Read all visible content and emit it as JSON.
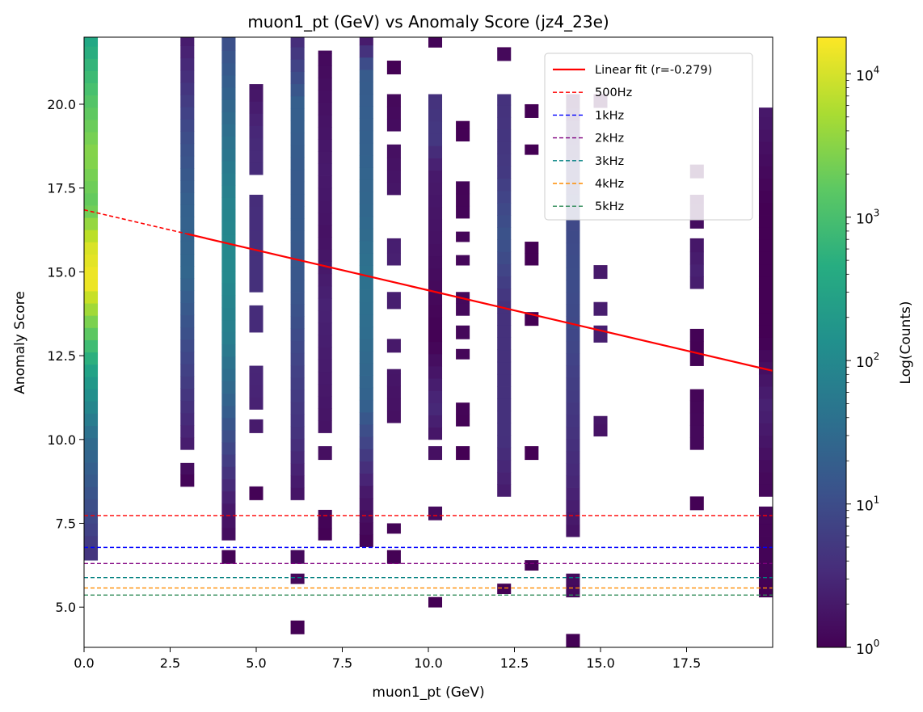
{
  "chart_data": {
    "type": "heatmap",
    "title": "muon1_pt (GeV) vs Anomaly Score (jz4_23e)",
    "xlabel": "muon1_pt (GeV)",
    "ylabel": "Anomaly Score",
    "xlim": [
      0,
      20
    ],
    "ylim": [
      3.8,
      22.0
    ],
    "x_ticks": [
      0.0,
      2.5,
      5.0,
      7.5,
      10.0,
      12.5,
      15.0,
      17.5
    ],
    "x_tick_labels": [
      "0.0",
      "2.5",
      "5.0",
      "7.5",
      "10.0",
      "12.5",
      "15.0",
      "17.5"
    ],
    "y_ticks": [
      5.0,
      7.5,
      10.0,
      12.5,
      15.0,
      17.5,
      20.0
    ],
    "y_tick_labels": [
      "5.0",
      "7.5",
      "10.0",
      "12.5",
      "15.0",
      "17.5",
      "20.0"
    ],
    "grid": false,
    "colormap": "viridis",
    "colorbar": {
      "label": "Log(Counts)",
      "scale": "log",
      "range": [
        1,
        18000
      ],
      "ticks": [
        1,
        10,
        100,
        1000,
        10000
      ],
      "tick_bases": [
        "10",
        "10",
        "10",
        "10",
        "10"
      ],
      "tick_exponents": [
        "0",
        "1",
        "2",
        "3",
        "4"
      ]
    },
    "heatmap_columns": [
      {
        "x": 0.2,
        "segments": [
          [
            6.4,
            22.0
          ]
        ],
        "log10_profile": [
          [
            6.4,
            0.6
          ],
          [
            8.0,
            1.0
          ],
          [
            10.0,
            1.5
          ],
          [
            12.0,
            2.4
          ],
          [
            13.5,
            3.4
          ],
          [
            14.7,
            4.2
          ],
          [
            15.8,
            4.0
          ],
          [
            17.0,
            3.2
          ],
          [
            18.5,
            3.5
          ],
          [
            20.5,
            3.0
          ],
          [
            22.0,
            2.5
          ]
        ]
      },
      {
        "x": 3.0,
        "segments": [
          [
            8.6,
            9.3
          ],
          [
            9.7,
            22.0
          ]
        ],
        "log10_profile": [
          [
            8.6,
            0.0
          ],
          [
            10.5,
            0.5
          ],
          [
            13.0,
            1.0
          ],
          [
            15.0,
            1.4
          ],
          [
            17.0,
            1.3
          ],
          [
            19.0,
            1.0
          ],
          [
            22.0,
            0.3
          ]
        ]
      },
      {
        "x": 4.2,
        "segments": [
          [
            6.3,
            6.7
          ],
          [
            7.0,
            22.0
          ]
        ],
        "log10_profile": [
          [
            6.3,
            0.0
          ],
          [
            8.0,
            0.3
          ],
          [
            9.5,
            0.8
          ],
          [
            11.0,
            1.3
          ],
          [
            13.0,
            1.8
          ],
          [
            15.0,
            2.0
          ],
          [
            17.0,
            1.9
          ],
          [
            19.0,
            1.6
          ],
          [
            22.0,
            1.0
          ]
        ]
      },
      {
        "x": 5.0,
        "segments": [
          [
            8.2,
            8.6
          ],
          [
            10.2,
            10.6
          ],
          [
            10.9,
            12.2
          ],
          [
            13.2,
            14.0
          ],
          [
            14.4,
            17.3
          ],
          [
            17.9,
            20.6
          ]
        ],
        "log10_profile": [
          [
            8.2,
            0.0
          ],
          [
            11.0,
            0.4
          ],
          [
            15.0,
            0.6
          ],
          [
            19.0,
            0.5
          ],
          [
            20.6,
            0.2
          ]
        ]
      },
      {
        "x": 6.2,
        "segments": [
          [
            4.2,
            4.6
          ],
          [
            5.7,
            6.0
          ],
          [
            6.3,
            6.7
          ],
          [
            8.2,
            22.0
          ]
        ],
        "log10_profile": [
          [
            4.2,
            0.0
          ],
          [
            8.2,
            0.2
          ],
          [
            10.0,
            0.6
          ],
          [
            12.0,
            0.8
          ],
          [
            14.0,
            1.1
          ],
          [
            16.0,
            1.2
          ],
          [
            18.0,
            1.2
          ],
          [
            20.0,
            1.3
          ],
          [
            22.0,
            0.5
          ]
        ]
      },
      {
        "x": 7.0,
        "segments": [
          [
            7.0,
            7.9
          ],
          [
            9.4,
            9.8
          ],
          [
            10.2,
            21.6
          ]
        ],
        "log10_profile": [
          [
            7.0,
            0.0
          ],
          [
            10.0,
            0.2
          ],
          [
            12.0,
            0.3
          ],
          [
            14.0,
            0.4
          ],
          [
            16.0,
            0.2
          ],
          [
            18.0,
            0.3
          ],
          [
            21.6,
            0.1
          ]
        ]
      },
      {
        "x": 8.2,
        "segments": [
          [
            6.8,
            22.0
          ]
        ],
        "log10_profile": [
          [
            6.8,
            0.0
          ],
          [
            8.5,
            0.3
          ],
          [
            10.0,
            0.9
          ],
          [
            11.0,
            1.3
          ],
          [
            13.0,
            1.5
          ],
          [
            15.0,
            1.6
          ],
          [
            17.0,
            1.4
          ],
          [
            19.0,
            1.3
          ],
          [
            21.0,
            1.2
          ],
          [
            22.0,
            0.2
          ]
        ]
      },
      {
        "x": 9.0,
        "segments": [
          [
            6.3,
            6.7
          ],
          [
            7.2,
            7.5
          ],
          [
            10.5,
            12.1
          ],
          [
            12.6,
            13.0
          ],
          [
            13.9,
            14.4
          ],
          [
            15.2,
            16.0
          ],
          [
            17.3,
            18.8
          ],
          [
            19.2,
            20.3
          ],
          [
            20.9,
            21.3
          ]
        ],
        "log10_profile": [
          [
            6.3,
            0.0
          ],
          [
            11.0,
            0.2
          ],
          [
            15.0,
            0.4
          ],
          [
            20.0,
            0.1
          ],
          [
            21.3,
            0.0
          ]
        ]
      },
      {
        "x": 10.2,
        "segments": [
          [
            5.0,
            5.3
          ],
          [
            7.6,
            8.0
          ],
          [
            9.4,
            9.8
          ],
          [
            10.0,
            20.3
          ],
          [
            21.7,
            22.0
          ]
        ],
        "log10_profile": [
          [
            5.0,
            0.0
          ],
          [
            10.0,
            0.2
          ],
          [
            11.0,
            0.5
          ],
          [
            13.0,
            0.0
          ],
          [
            16.0,
            0.2
          ],
          [
            18.0,
            0.3
          ],
          [
            19.0,
            0.7
          ],
          [
            20.3,
            0.6
          ],
          [
            22.0,
            0.0
          ]
        ]
      },
      {
        "x": 11.0,
        "segments": [
          [
            9.4,
            9.8
          ],
          [
            10.4,
            11.1
          ],
          [
            12.4,
            12.7
          ],
          [
            13.0,
            13.4
          ],
          [
            13.7,
            14.4
          ],
          [
            15.2,
            15.5
          ],
          [
            15.9,
            16.2
          ],
          [
            16.6,
            17.7
          ],
          [
            18.9,
            19.5
          ]
        ],
        "log10_profile": [
          [
            9.4,
            0.0
          ],
          [
            14.0,
            0.1
          ],
          [
            19.5,
            0.0
          ]
        ]
      },
      {
        "x": 12.2,
        "segments": [
          [
            5.4,
            5.7
          ],
          [
            8.3,
            20.3
          ],
          [
            21.3,
            21.7
          ]
        ],
        "log10_profile": [
          [
            5.4,
            0.0
          ],
          [
            8.3,
            0.3
          ],
          [
            10.0,
            0.6
          ],
          [
            12.0,
            0.6
          ],
          [
            14.0,
            0.6
          ],
          [
            16.0,
            1.1
          ],
          [
            18.0,
            0.7
          ],
          [
            20.3,
            0.6
          ],
          [
            21.7,
            0.0
          ]
        ]
      },
      {
        "x": 13.0,
        "segments": [
          [
            6.1,
            6.4
          ],
          [
            9.4,
            9.8
          ],
          [
            13.4,
            13.8
          ],
          [
            15.2,
            15.9
          ],
          [
            18.5,
            18.8
          ],
          [
            19.6,
            20.0
          ]
        ],
        "log10_profile": [
          [
            6.1,
            0.0
          ],
          [
            20.0,
            0.0
          ]
        ]
      },
      {
        "x": 14.2,
        "segments": [
          [
            3.8,
            4.2
          ],
          [
            5.3,
            6.0
          ],
          [
            7.1,
            20.3
          ]
        ],
        "log10_profile": [
          [
            3.8,
            0.0
          ],
          [
            7.1,
            0.2
          ],
          [
            9.0,
            0.5
          ],
          [
            11.0,
            0.7
          ],
          [
            13.0,
            0.9
          ],
          [
            15.0,
            1.0
          ],
          [
            17.0,
            0.9
          ],
          [
            19.0,
            0.5
          ],
          [
            20.3,
            0.1
          ]
        ]
      },
      {
        "x": 15.0,
        "segments": [
          [
            10.1,
            10.7
          ],
          [
            12.9,
            13.4
          ],
          [
            13.7,
            14.1
          ],
          [
            14.8,
            15.2
          ],
          [
            19.9,
            20.3
          ]
        ],
        "log10_profile": [
          [
            10.1,
            0.2
          ],
          [
            12.0,
            0.4
          ],
          [
            15.0,
            0.3
          ],
          [
            20.3,
            0.0
          ]
        ]
      },
      {
        "x": 17.8,
        "segments": [
          [
            7.9,
            8.3
          ],
          [
            9.7,
            11.5
          ],
          [
            12.2,
            13.3
          ],
          [
            14.5,
            16.0
          ],
          [
            16.3,
            17.3
          ],
          [
            17.8,
            18.2
          ]
        ],
        "log10_profile": [
          [
            7.9,
            0.0
          ],
          [
            10.0,
            0.1
          ],
          [
            13.0,
            0.0
          ],
          [
            15.0,
            0.4
          ],
          [
            17.3,
            0.0
          ],
          [
            18.2,
            0.0
          ]
        ]
      },
      {
        "x": 19.8,
        "segments": [
          [
            5.3,
            8.0
          ],
          [
            8.3,
            19.9
          ]
        ],
        "log10_profile": [
          [
            5.3,
            0.0
          ],
          [
            9.0,
            0.1
          ],
          [
            11.0,
            0.4
          ],
          [
            13.0,
            0.0
          ],
          [
            16.0,
            0.0
          ],
          [
            17.0,
            0.0
          ],
          [
            19.9,
            0.3
          ]
        ]
      }
    ],
    "series": [
      {
        "name": "Linear fit (r=-0.279)",
        "type": "line",
        "color": "#ff0000",
        "style": "solid",
        "x": [
          0,
          20
        ],
        "y": [
          16.85,
          12.05
        ],
        "dashed_until_x": 3.0
      },
      {
        "name": "500Hz",
        "type": "hline",
        "color": "#ff0000",
        "style": "dashed",
        "y": 7.73
      },
      {
        "name": "1kHz",
        "type": "hline",
        "color": "#0000ff",
        "style": "dashed",
        "y": 6.78
      },
      {
        "name": "2kHz",
        "type": "hline",
        "color": "#800080",
        "style": "dashed",
        "y": 6.3
      },
      {
        "name": "3kHz",
        "type": "hline",
        "color": "#008080",
        "style": "dashed",
        "y": 5.88
      },
      {
        "name": "4kHz",
        "type": "hline",
        "color": "#ff8c00",
        "style": "dashed",
        "y": 5.57
      },
      {
        "name": "5kHz",
        "type": "hline",
        "color": "#2e8b57",
        "style": "dashed",
        "y": 5.36
      }
    ],
    "legend": {
      "placement": "top-right"
    }
  }
}
